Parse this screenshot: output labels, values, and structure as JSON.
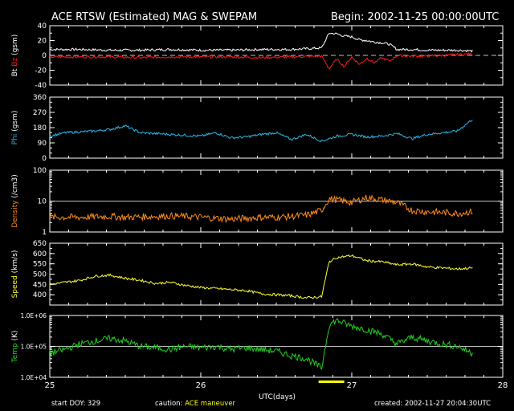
{
  "header": {
    "title": "ACE RTSW (Estimated) MAG & SWEPAM",
    "begin": "Begin: 2002-11-25 00:00:00UTC"
  },
  "footer": {
    "start_doy": "start DOY: 329",
    "caution_label": "caution:",
    "caution_value": "ACE maneuver",
    "created": "created: 2002-11-27 20:04:30UTC"
  },
  "colors": {
    "background": "#000000",
    "bt": "#ffffff",
    "bz": "#ff1a1a",
    "phi": "#2ab8e8",
    "density": "#ff8c1a",
    "speed": "#ffff33",
    "temp": "#22d022",
    "caution_bar": "#ffff00"
  },
  "chart_data": {
    "type": "line",
    "xlabel": "UTC(days)",
    "x_ticks": [
      "25",
      "26",
      "27",
      "28"
    ],
    "xlim": [
      25,
      28
    ],
    "caution_interval": [
      26.78,
      26.95
    ],
    "panels": [
      {
        "id": "mag",
        "ylabel_parts": [
          {
            "text": "Bt",
            "color": "#ffffff"
          },
          {
            "text": "Bz",
            "color": "#ff1a1a"
          },
          {
            "text": "(gsm)",
            "color": "#ffffff"
          }
        ],
        "scale": "linear",
        "ylim": [
          -40,
          40
        ],
        "y_ticks": [
          "-40",
          "-20",
          "0",
          "20",
          "40"
        ],
        "y_tick_values": [
          -40,
          -20,
          0,
          20,
          40
        ],
        "minor_step": 10,
        "refline": 0,
        "series": [
          {
            "key": "Bt",
            "color": "#ffffff",
            "x": [
              25.0,
              25.2,
              25.4,
              25.6,
              25.8,
              26.0,
              26.2,
              26.4,
              26.6,
              26.8,
              26.85,
              26.9,
              26.95,
              27.0,
              27.05,
              27.1,
              27.15,
              27.2,
              27.25,
              27.3,
              27.4,
              27.5,
              27.6,
              27.7,
              27.8
            ],
            "y": [
              8,
              8,
              7,
              7,
              8,
              7,
              7,
              8,
              8,
              10,
              30,
              29,
              26,
              25,
              21,
              20,
              18,
              17,
              15,
              8,
              8,
              7,
              7,
              7,
              6
            ]
          },
          {
            "key": "Bz",
            "color": "#ff1a1a",
            "x": [
              25.0,
              25.2,
              25.4,
              25.6,
              25.8,
              26.0,
              26.2,
              26.4,
              26.6,
              26.8,
              26.85,
              26.9,
              26.95,
              27.0,
              27.05,
              27.1,
              27.15,
              27.2,
              27.25,
              27.3,
              27.4,
              27.5,
              27.6,
              27.7,
              27.8
            ],
            "y": [
              -2,
              -2,
              -2,
              -3,
              -2,
              -2,
              -2,
              -3,
              -2,
              -1,
              -18,
              -5,
              -15,
              -2,
              -12,
              -4,
              -10,
              -3,
              -8,
              0,
              -1,
              -1,
              0,
              1,
              2
            ]
          }
        ]
      },
      {
        "id": "phi",
        "ylabel_parts": [
          {
            "text": "Phi",
            "color": "#2ab8e8"
          },
          {
            "text": "(gsm)",
            "color": "#ffffff"
          }
        ],
        "scale": "linear",
        "ylim": [
          0,
          360
        ],
        "y_ticks": [
          "0",
          "90",
          "180",
          "270",
          "360"
        ],
        "y_tick_values": [
          0,
          90,
          180,
          270,
          360
        ],
        "minor_step": 30,
        "refline": null,
        "series": [
          {
            "key": "Phi",
            "color": "#2ab8e8",
            "x": [
              25.0,
              25.1,
              25.2,
              25.3,
              25.4,
              25.5,
              25.6,
              25.7,
              25.8,
              25.9,
              26.0,
              26.1,
              26.2,
              26.3,
              26.4,
              26.5,
              26.6,
              26.7,
              26.8,
              26.9,
              27.0,
              27.1,
              27.2,
              27.3,
              27.4,
              27.5,
              27.6,
              27.7,
              27.8
            ],
            "y": [
              130,
              150,
              155,
              160,
              170,
              190,
              150,
              145,
              140,
              135,
              130,
              150,
              120,
              125,
              140,
              150,
              110,
              140,
              100,
              130,
              140,
              125,
              130,
              145,
              115,
              140,
              150,
              160,
              230
            ]
          }
        ]
      },
      {
        "id": "density",
        "ylabel_parts": [
          {
            "text": "Density",
            "color": "#ff8c1a"
          },
          {
            "text": "(/cm3)",
            "color": "#ffffff"
          }
        ],
        "scale": "log",
        "ylim": [
          1,
          100
        ],
        "y_ticks": [
          "1",
          "10",
          "100"
        ],
        "y_tick_values": [
          1,
          10,
          100
        ],
        "refline": 10,
        "series": [
          {
            "key": "Density",
            "color": "#ff8c1a",
            "x": [
              25.0,
              25.1,
              25.2,
              25.3,
              25.4,
              25.5,
              25.6,
              25.7,
              25.8,
              25.9,
              26.0,
              26.1,
              26.2,
              26.3,
              26.4,
              26.5,
              26.6,
              26.7,
              26.8,
              26.85,
              26.9,
              27.0,
              27.1,
              27.2,
              27.3,
              27.4,
              27.5,
              27.6,
              27.7,
              27.8
            ],
            "y": [
              3,
              3,
              3,
              3.1,
              3.2,
              3,
              3.1,
              3.2,
              3.3,
              3.2,
              3,
              2.8,
              2.6,
              2.8,
              3,
              3,
              3.2,
              3.5,
              5,
              12,
              11,
              9,
              13,
              11,
              9,
              5,
              4.5,
              4.3,
              4,
              4.6
            ]
          }
        ]
      },
      {
        "id": "speed",
        "ylabel_parts": [
          {
            "text": "Speed",
            "color": "#ffff33"
          },
          {
            "text": "(km/s)",
            "color": "#ffffff"
          }
        ],
        "scale": "linear",
        "ylim": [
          350,
          650
        ],
        "y_ticks": [
          "400",
          "450",
          "500",
          "550",
          "600",
          "650"
        ],
        "y_tick_values": [
          400,
          450,
          500,
          550,
          600,
          650
        ],
        "minor_step": 25,
        "refline": null,
        "series": [
          {
            "key": "Speed",
            "color": "#ffff33",
            "x": [
              25.0,
              25.1,
              25.2,
              25.3,
              25.4,
              25.5,
              25.6,
              25.7,
              25.8,
              25.9,
              26.0,
              26.1,
              26.2,
              26.3,
              26.4,
              26.5,
              26.6,
              26.7,
              26.8,
              26.85,
              26.9,
              27.0,
              27.1,
              27.2,
              27.3,
              27.4,
              27.5,
              27.6,
              27.7,
              27.8
            ],
            "y": [
              450,
              460,
              470,
              490,
              495,
              480,
              470,
              455,
              460,
              445,
              435,
              430,
              425,
              420,
              405,
              400,
              395,
              385,
              390,
              560,
              580,
              590,
              565,
              560,
              545,
              550,
              535,
              530,
              525,
              530
            ]
          }
        ]
      },
      {
        "id": "temp",
        "ylabel_parts": [
          {
            "text": "Temp",
            "color": "#22d022"
          },
          {
            "text": "(K)",
            "color": "#ffffff"
          }
        ],
        "scale": "log",
        "ylim": [
          10000,
          1000000
        ],
        "y_ticks": [
          "1.0E+04",
          "1.0E+05",
          "1.0E+06"
        ],
        "y_tick_values": [
          10000,
          100000,
          1000000
        ],
        "refline": 100000,
        "series": [
          {
            "key": "Temp",
            "color": "#22d022",
            "x": [
              25.0,
              25.1,
              25.2,
              25.3,
              25.4,
              25.5,
              25.6,
              25.7,
              25.8,
              25.9,
              26.0,
              26.1,
              26.2,
              26.3,
              26.4,
              26.5,
              26.6,
              26.7,
              26.8,
              26.85,
              26.9,
              27.0,
              27.1,
              27.2,
              27.3,
              27.4,
              27.5,
              27.6,
              27.7,
              27.8
            ],
            "y": [
              60000,
              80000,
              120000,
              150000,
              180000,
              150000,
              100000,
              90000,
              80000,
              100000,
              90000,
              100000,
              80000,
              90000,
              80000,
              70000,
              50000,
              40000,
              20000,
              500000,
              700000,
              450000,
              350000,
              250000,
              120000,
              200000,
              150000,
              120000,
              100000,
              60000
            ]
          }
        ]
      }
    ]
  }
}
